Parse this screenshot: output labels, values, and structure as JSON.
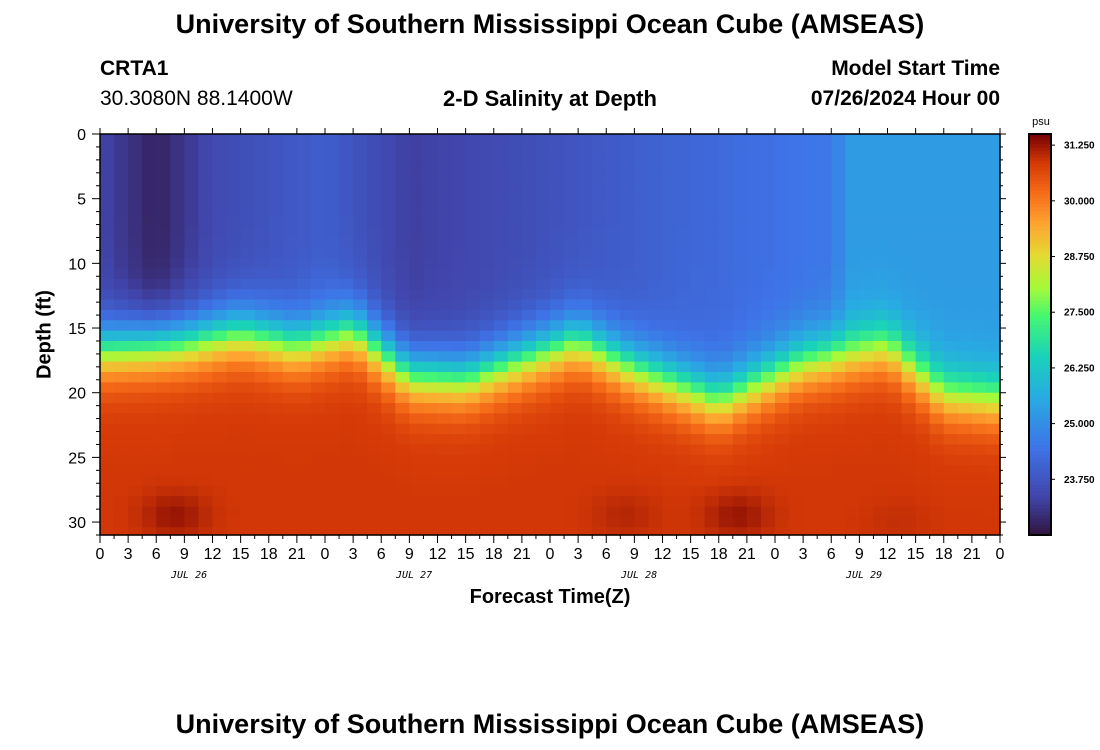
{
  "header": {
    "title": "University of Southern Mississippi Ocean Cube (AMSEAS)",
    "station": "CRTA1",
    "coords": "30.3080N  88.1400W",
    "subtitle": "2-D Salinity at Depth",
    "model_label": "Model Start Time",
    "model_time": "07/26/2024 Hour 00"
  },
  "footer": {
    "title": "University of Southern Mississippi Ocean Cube (AMSEAS)"
  },
  "chart_data": {
    "type": "heatmap",
    "title": "2-D Salinity at Depth",
    "xlabel": "Forecast Time(Z)",
    "ylabel": "Depth (ft)",
    "x_hours": [
      0,
      96
    ],
    "x_tick_labels": [
      "0",
      "3",
      "6",
      "9",
      "12",
      "15",
      "18",
      "21",
      "0",
      "3",
      "6",
      "9",
      "12",
      "15",
      "18",
      "21",
      "0",
      "3",
      "6",
      "9",
      "12",
      "15",
      "18",
      "21",
      "0",
      "3",
      "6",
      "9",
      "12",
      "15",
      "18",
      "21",
      "0"
    ],
    "day_labels": [
      "JUL 26",
      "JUL 27",
      "JUL 28",
      "JUL 29"
    ],
    "ylim": [
      0,
      31
    ],
    "y_ticks": [
      0,
      5,
      10,
      15,
      20,
      25,
      30
    ],
    "colorbar": {
      "unit": "psu",
      "min": 22.5,
      "max": 31.5,
      "ticks": [
        "31.250",
        "30.000",
        "28.750",
        "27.500",
        "26.250",
        "25.000",
        "23.750"
      ],
      "tick_values": [
        31.25,
        30.0,
        28.75,
        27.5,
        26.25,
        25.0,
        23.75
      ]
    },
    "approx_field": {
      "description": "salinity (psu) by forecast hour and depth",
      "surface_salinity": [
        [
          0,
          23.4
        ],
        [
          6,
          22.8
        ],
        [
          12,
          23.5
        ],
        [
          24,
          24.0
        ],
        [
          33,
          23.3
        ],
        [
          45,
          23.6
        ],
        [
          60,
          24.1
        ],
        [
          78,
          24.6
        ],
        [
          80,
          25.3
        ],
        [
          96,
          25.3
        ]
      ],
      "halocline_depth_ft": [
        [
          0,
          16.5
        ],
        [
          9,
          16.0
        ],
        [
          15,
          15.2
        ],
        [
          21,
          16.2
        ],
        [
          27,
          15.0
        ],
        [
          33,
          18.5
        ],
        [
          39,
          18.8
        ],
        [
          51,
          15.8
        ],
        [
          57,
          18.0
        ],
        [
          66,
          20.5
        ],
        [
          75,
          17.5
        ],
        [
          84,
          16.3
        ],
        [
          90,
          20.0
        ],
        [
          96,
          20.5
        ]
      ],
      "bottom_salinity": 30.9,
      "high_salinity_patches": [
        [
          8,
          29.5,
          31.3
        ],
        [
          14,
          29.5,
          30.9
        ],
        [
          56,
          29.5,
          31.1
        ],
        [
          68,
          29.5,
          31.3
        ],
        [
          85,
          30.0,
          31.0
        ]
      ]
    }
  }
}
